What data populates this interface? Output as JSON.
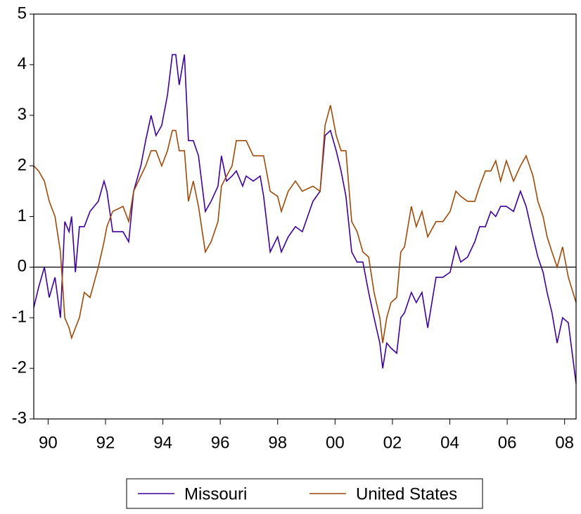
{
  "chart_data": {
    "type": "line",
    "x": [
      1990.0,
      1990.17,
      1990.37,
      1990.54,
      1990.74,
      1990.93,
      1991.08,
      1991.23,
      1991.32,
      1991.45,
      1991.59,
      1991.76,
      1991.96,
      1992.25,
      1992.45,
      1992.55,
      1992.75,
      1993.11,
      1993.31,
      1993.48,
      1993.73,
      1993.9,
      1994.09,
      1994.26,
      1994.46,
      1994.66,
      1994.83,
      1994.95,
      1995.07,
      1995.25,
      1995.39,
      1995.56,
      1995.74,
      1995.98,
      1996.18,
      1996.42,
      1996.54,
      1996.72,
      1996.91,
      1997.06,
      1997.28,
      1997.4,
      1997.65,
      1997.89,
      1998.01,
      1998.24,
      1998.5,
      1998.63,
      1998.87,
      1999.12,
      1999.36,
      1999.73,
      1999.98,
      2000.15,
      2000.34,
      2000.54,
      2000.71,
      2000.88,
      2001.08,
      2001.27,
      2001.47,
      2001.67,
      2001.86,
      2002.06,
      2002.16,
      2002.3,
      2002.45,
      2002.65,
      2002.79,
      2002.92,
      2003.16,
      2003.33,
      2003.53,
      2003.73,
      2004.02,
      2004.26,
      2004.51,
      2004.71,
      2004.88,
      2005.12,
      2005.37,
      2005.54,
      2005.74,
      2005.93,
      2006.1,
      2006.27,
      2006.47,
      2006.72,
      2006.96,
      2007.16,
      2007.4,
      2007.57,
      2007.75,
      2007.89,
      2008.06,
      2008.24,
      2008.43,
      2008.63,
      2008.9
    ],
    "series": [
      {
        "name": "Missouri",
        "color": "#3d0099",
        "values": [
          -0.8,
          -0.4,
          0.0,
          -0.6,
          -0.2,
          -1.0,
          0.9,
          0.7,
          1.0,
          -0.1,
          0.8,
          0.8,
          1.1,
          1.3,
          1.7,
          1.5,
          0.7,
          0.7,
          0.5,
          1.5,
          2.0,
          2.5,
          3.0,
          2.6,
          2.8,
          3.4,
          4.2,
          4.2,
          3.6,
          4.2,
          2.5,
          2.5,
          2.2,
          1.1,
          1.3,
          1.6,
          2.2,
          1.7,
          1.8,
          1.9,
          1.6,
          1.8,
          1.7,
          1.8,
          1.4,
          0.3,
          0.6,
          0.3,
          0.6,
          0.8,
          0.7,
          1.3,
          1.5,
          2.6,
          2.7,
          2.3,
          1.9,
          1.4,
          0.3,
          0.1,
          0.1,
          -0.5,
          -1.0,
          -1.5,
          -2.0,
          -1.5,
          -1.6,
          -1.7,
          -1.0,
          -0.9,
          -0.5,
          -0.7,
          -0.5,
          -1.2,
          -0.2,
          -0.2,
          -0.1,
          0.4,
          0.1,
          0.2,
          0.5,
          0.8,
          0.8,
          1.1,
          1.0,
          1.2,
          1.2,
          1.1,
          1.5,
          1.2,
          0.6,
          0.2,
          -0.1,
          -0.5,
          -0.9,
          -1.5,
          -1.0,
          -1.1,
          -2.3
        ]
      },
      {
        "name": "United States",
        "color": "#9c4a0a",
        "values": [
          2.0,
          1.9,
          1.7,
          1.3,
          1.0,
          0.3,
          -1.0,
          -1.2,
          -1.4,
          -1.2,
          -1.0,
          -0.5,
          -0.6,
          0.0,
          0.5,
          0.8,
          1.1,
          1.2,
          0.9,
          1.5,
          1.8,
          2.0,
          2.3,
          2.3,
          2.0,
          2.3,
          2.7,
          2.7,
          2.3,
          2.3,
          1.3,
          1.7,
          1.2,
          0.3,
          0.5,
          0.9,
          1.6,
          1.8,
          2.0,
          2.5,
          2.5,
          2.5,
          2.2,
          2.2,
          2.2,
          1.5,
          1.4,
          1.1,
          1.5,
          1.7,
          1.5,
          1.6,
          1.5,
          2.8,
          3.2,
          2.6,
          2.3,
          2.3,
          0.9,
          0.7,
          0.3,
          0.2,
          -0.5,
          -1.0,
          -1.5,
          -1.0,
          -0.7,
          -0.6,
          0.3,
          0.4,
          1.2,
          0.8,
          1.1,
          0.6,
          0.9,
          0.9,
          1.1,
          1.5,
          1.4,
          1.3,
          1.3,
          1.6,
          1.9,
          1.9,
          2.1,
          1.7,
          2.1,
          1.7,
          2.0,
          2.2,
          1.8,
          1.3,
          1.0,
          0.6,
          0.3,
          0.0,
          0.4,
          -0.2,
          -0.7
        ]
      }
    ],
    "xlim": [
      1990,
      2008.9
    ],
    "xticks": [
      {
        "value": 1990.5,
        "label": "90"
      },
      {
        "value": 1992.5,
        "label": "92"
      },
      {
        "value": 1994.5,
        "label": "94"
      },
      {
        "value": 1996.5,
        "label": "96"
      },
      {
        "value": 1998.5,
        "label": "98"
      },
      {
        "value": 2000.5,
        "label": "00"
      },
      {
        "value": 2002.5,
        "label": "02"
      },
      {
        "value": 2004.5,
        "label": "04"
      },
      {
        "value": 2006.5,
        "label": "06"
      },
      {
        "value": 2008.5,
        "label": "08"
      }
    ],
    "ylim": [
      -3,
      5
    ],
    "yticks": [
      -3,
      -2,
      -1,
      0,
      1,
      2,
      3,
      4,
      5
    ],
    "reference_line": 0,
    "legend": "bottom"
  }
}
